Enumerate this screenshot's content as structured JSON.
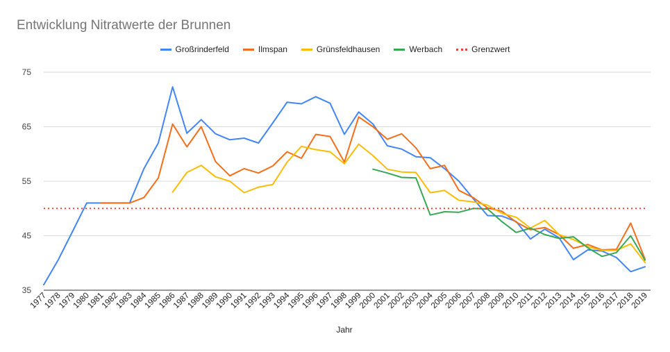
{
  "chart_data": {
    "type": "line",
    "title": "Entwicklung Nitratwerte der Brunnen",
    "xlabel": "Jahr",
    "ylabel": "",
    "ylim": [
      35,
      75
    ],
    "yticks": [
      35,
      45,
      55,
      65,
      75
    ],
    "grid": true,
    "legend_position": "top",
    "x": [
      "1977",
      "1978",
      "1979",
      "1980",
      "1981",
      "1982",
      "1983",
      "1984",
      "1985",
      "1986",
      "1987",
      "1988",
      "1989",
      "1990",
      "1991",
      "1992",
      "1993",
      "1994",
      "1995",
      "1996",
      "1997",
      "1998",
      "1999",
      "2000",
      "2001",
      "2002",
      "2003",
      "2004",
      "2005",
      "2006",
      "2007",
      "2008",
      "2009",
      "2010",
      "2011",
      "2012",
      "2013",
      "2014",
      "2015",
      "2016",
      "2017",
      "2018",
      "2019"
    ],
    "series": [
      {
        "name": "Großrinderfeld",
        "color": "#4285F4",
        "style": "solid",
        "values": [
          36,
          40.5,
          45.7,
          51,
          51,
          51,
          51,
          57.3,
          62,
          72.3,
          63.8,
          66.3,
          63.7,
          62.6,
          62.9,
          62,
          65.7,
          69.5,
          69.2,
          70.5,
          69.3,
          63.6,
          67.7,
          65.5,
          61.5,
          60.9,
          59.5,
          59.3,
          57.3,
          55,
          51.8,
          48.7,
          48.6,
          47.6,
          44.4,
          46.2,
          44.6,
          40.6,
          42.4,
          42.2,
          41,
          38.4,
          39.3
        ]
      },
      {
        "name": "Ilmspan",
        "color": "#F46E1A",
        "style": "solid",
        "values": [
          null,
          null,
          null,
          null,
          51,
          51,
          51,
          52,
          55.6,
          65.5,
          61.3,
          65,
          58.6,
          56,
          57.3,
          56.5,
          57.8,
          60.4,
          59.2,
          63.6,
          63.2,
          58.5,
          66.8,
          65,
          62.7,
          63.7,
          61.1,
          57.3,
          57.9,
          53.3,
          52,
          50.1,
          49.5,
          47.5,
          46.1,
          46.5,
          45.2,
          42.7,
          43.4,
          42.4,
          42.5,
          47.3,
          40.7
        ]
      },
      {
        "name": "Grünsfeldhausen",
        "color": "#FBBC04",
        "style": "solid",
        "values": [
          null,
          null,
          null,
          null,
          null,
          null,
          null,
          null,
          null,
          53,
          56.6,
          57.9,
          55.8,
          55,
          52.9,
          53.9,
          54.4,
          58.5,
          61.4,
          60.8,
          60.4,
          58.2,
          61.8,
          59.7,
          57.2,
          56.7,
          56.6,
          52.9,
          53.3,
          51.5,
          51.2,
          50.6,
          49.1,
          48.4,
          46.4,
          47.8,
          45.2,
          44.3,
          43,
          42.3,
          42.3,
          43.5,
          40.1
        ]
      },
      {
        "name": "Werbach",
        "color": "#34A853",
        "style": "solid",
        "values": [
          null,
          null,
          null,
          null,
          null,
          null,
          null,
          null,
          null,
          null,
          null,
          null,
          null,
          null,
          null,
          null,
          null,
          null,
          null,
          null,
          null,
          null,
          null,
          57.2,
          56.5,
          55.7,
          55.6,
          48.8,
          49.4,
          49.3,
          50,
          49.9,
          47.6,
          45.6,
          46.4,
          45.2,
          44.5,
          44.8,
          42.8,
          41.2,
          41.9,
          45,
          40.5
        ]
      },
      {
        "name": "Grenzwert",
        "color": "#EA4335",
        "style": "dotted",
        "values": [
          50,
          50,
          50,
          50,
          50,
          50,
          50,
          50,
          50,
          50,
          50,
          50,
          50,
          50,
          50,
          50,
          50,
          50,
          50,
          50,
          50,
          50,
          50,
          50,
          50,
          50,
          50,
          50,
          50,
          50,
          50,
          50,
          50,
          50,
          50,
          50,
          50,
          50,
          50,
          50,
          50,
          50,
          50
        ]
      }
    ]
  }
}
